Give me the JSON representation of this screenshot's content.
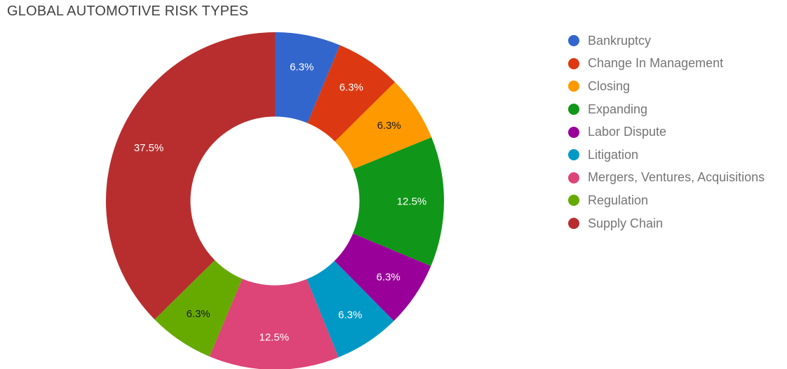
{
  "title": "GLOBAL AUTOMOTIVE RISK TYPES",
  "chart_data": {
    "type": "pie",
    "title": "GLOBAL AUTOMOTIVE RISK TYPES",
    "donut": true,
    "pie_hole": 0.5,
    "legend_position": "right",
    "start_angle_deg": 0,
    "direction": "clockwise",
    "slices": [
      {
        "label": "Bankruptcy",
        "percent": 6.3,
        "percent_label": "6.3%",
        "color": "#3366CC",
        "label_color": "#ffffff"
      },
      {
        "label": "Change In Management",
        "percent": 6.3,
        "percent_label": "6.3%",
        "color": "#DC3912",
        "label_color": "#ffffff"
      },
      {
        "label": "Closing",
        "percent": 6.3,
        "percent_label": "6.3%",
        "color": "#FF9900",
        "label_color": "#1a1a1a"
      },
      {
        "label": "Expanding",
        "percent": 12.5,
        "percent_label": "12.5%",
        "color": "#109618",
        "label_color": "#ffffff"
      },
      {
        "label": "Labor Dispute",
        "percent": 6.3,
        "percent_label": "6.3%",
        "color": "#990099",
        "label_color": "#ffffff"
      },
      {
        "label": "Litigation",
        "percent": 6.3,
        "percent_label": "6.3%",
        "color": "#0099C6",
        "label_color": "#ffffff"
      },
      {
        "label": "Mergers, Ventures, Acquisitions",
        "percent": 12.5,
        "percent_label": "12.5%",
        "color": "#DD4477",
        "label_color": "#ffffff"
      },
      {
        "label": "Regulation",
        "percent": 6.3,
        "percent_label": "6.3%",
        "color": "#66AA00",
        "label_color": "#1a1a1a"
      },
      {
        "label": "Supply Chain",
        "percent": 37.5,
        "percent_label": "37.5%",
        "color": "#B82E2E",
        "label_color": "#ffffff"
      }
    ]
  }
}
